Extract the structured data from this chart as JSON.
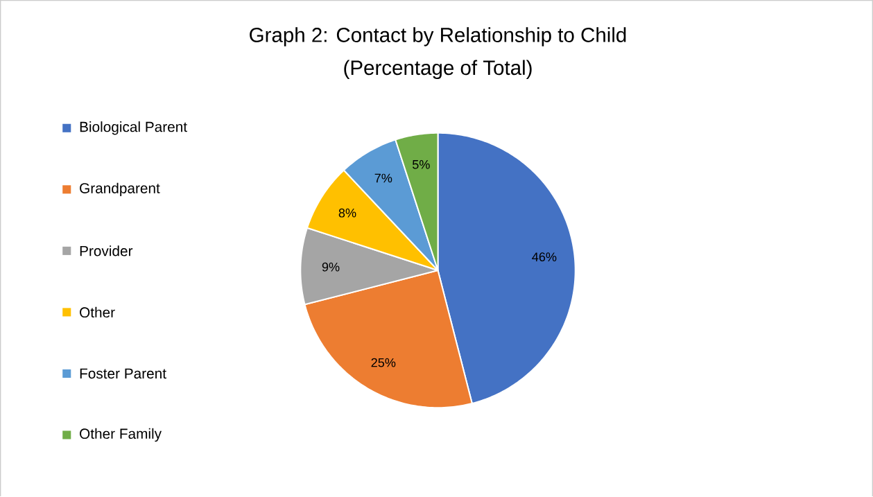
{
  "chart_data": {
    "type": "pie",
    "title": "Graph 2: Contact by Relationship to Child",
    "subtitle": "(Percentage of Total)",
    "categories": [
      "Biological Parent",
      "Grandparent",
      "Provider",
      "Other",
      "Foster Parent",
      "Other Family"
    ],
    "values": [
      46,
      25,
      9,
      8,
      7,
      5
    ],
    "value_labels": [
      "46%",
      "25%",
      "9%",
      "8%",
      "7%",
      "5%"
    ],
    "colors": [
      "#4472c4",
      "#ed7d31",
      "#a5a5a5",
      "#ffc000",
      "#5b9bd5",
      "#70ad47"
    ],
    "legend": "left"
  }
}
